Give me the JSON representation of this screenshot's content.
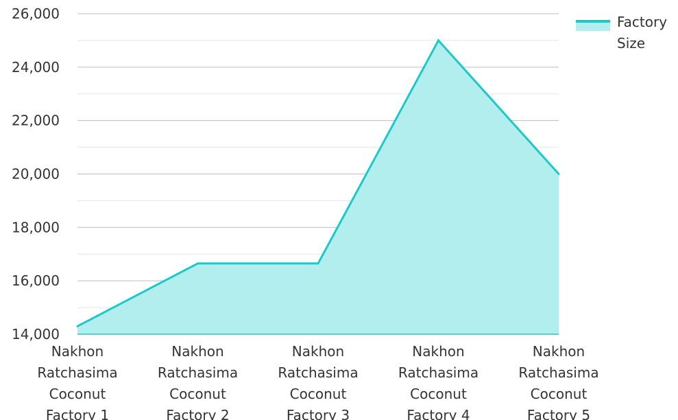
{
  "chart_data": {
    "type": "area",
    "categories": [
      [
        "Nakhon",
        "Ratchasima",
        "Coconut",
        "Factory 1"
      ],
      [
        "Nakhon",
        "Ratchasima",
        "Coconut",
        "Factory 2"
      ],
      [
        "Nakhon",
        "Ratchasima",
        "Coconut",
        "Factory 3"
      ],
      [
        "Nakhon",
        "Ratchasima",
        "Coconut",
        "Factory 4"
      ],
      [
        "Nakhon",
        "Ratchasima",
        "Coconut",
        "Factory 5"
      ]
    ],
    "series": [
      {
        "name": "Factory Size",
        "name_lines": [
          "Factory",
          "Size"
        ],
        "values": [
          14300,
          16650,
          16650,
          25000,
          20000
        ]
      }
    ],
    "ylim": [
      14000,
      26000
    ],
    "yticks": [
      14000,
      16000,
      18000,
      20000,
      22000,
      24000,
      26000
    ],
    "ytick_labels": [
      "14,000",
      "16,000",
      "18,000",
      "20,000",
      "22,000",
      "24,000",
      "26,000"
    ],
    "grid": true,
    "legend_position": "top-right",
    "colors": {
      "line": "#1ec8c8",
      "fill": "#b2eeee",
      "grid_major": "#bdbdbd",
      "grid_minor": "#e4e4e4",
      "axis": "#1ec8c8"
    }
  }
}
